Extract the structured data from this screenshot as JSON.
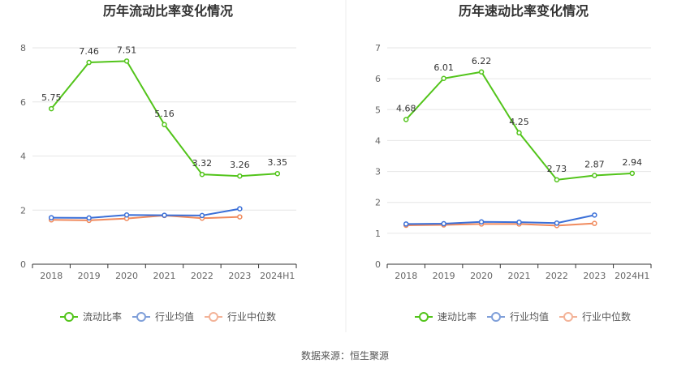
{
  "source_text": "数据来源：恒生聚源",
  "colors": {
    "primary": "#52c41a",
    "industry_avg": "#3a6fd8",
    "industry_median": "#f08a5d",
    "legend_avg": "#7f9fd9",
    "legend_median": "#f3b398",
    "grid": "#e6e6e6",
    "axis": "#333333",
    "divider": "#eeeeee"
  },
  "chart_data": [
    {
      "type": "line",
      "title": "历年流动比率变化情况",
      "categories": [
        "2018",
        "2019",
        "2020",
        "2021",
        "2022",
        "2023",
        "2024H1"
      ],
      "ylim": [
        0,
        8
      ],
      "yticks": [
        0,
        2,
        4,
        6,
        8
      ],
      "series": [
        {
          "name": "流动比率",
          "values": [
            5.75,
            7.46,
            7.51,
            5.16,
            3.32,
            3.26,
            3.35
          ],
          "labels": [
            "5.75",
            "7.46",
            "7.51",
            "5.16",
            "3.32",
            "3.26",
            "3.35"
          ]
        },
        {
          "name": "行业均值",
          "values": [
            1.72,
            1.71,
            1.82,
            1.81,
            1.8,
            2.05,
            null
          ]
        },
        {
          "name": "行业中位数",
          "values": [
            1.64,
            1.62,
            1.69,
            1.8,
            1.7,
            1.75,
            null
          ]
        }
      ],
      "legend": [
        "流动比率",
        "行业均值",
        "行业中位数"
      ]
    },
    {
      "type": "line",
      "title": "历年速动比率变化情况",
      "categories": [
        "2018",
        "2019",
        "2020",
        "2021",
        "2022",
        "2023",
        "2024H1"
      ],
      "ylim": [
        0,
        7
      ],
      "yticks": [
        0,
        1,
        2,
        3,
        4,
        5,
        6,
        7
      ],
      "series": [
        {
          "name": "速动比率",
          "values": [
            4.68,
            6.01,
            6.22,
            4.25,
            2.73,
            2.87,
            2.94
          ],
          "labels": [
            "4.68",
            "6.01",
            "6.22",
            "4.25",
            "2.73",
            "2.87",
            "2.94"
          ]
        },
        {
          "name": "行业均值",
          "values": [
            1.3,
            1.31,
            1.37,
            1.36,
            1.33,
            1.59,
            null
          ]
        },
        {
          "name": "行业中位数",
          "values": [
            1.26,
            1.27,
            1.3,
            1.3,
            1.25,
            1.32,
            null
          ]
        }
      ],
      "legend": [
        "速动比率",
        "行业均值",
        "行业中位数"
      ]
    }
  ]
}
